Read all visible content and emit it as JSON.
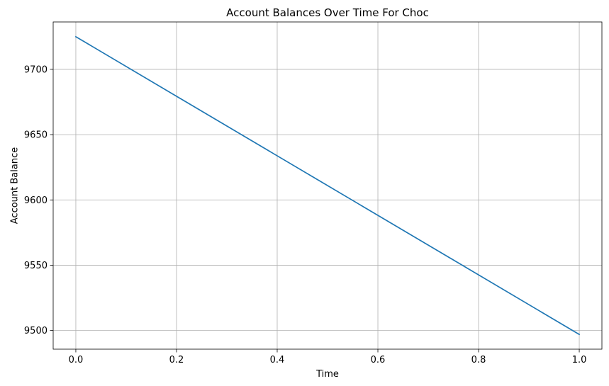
{
  "chart_data": {
    "type": "line",
    "title": "Account Balances Over Time For Choc",
    "xlabel": "Time",
    "ylabel": "Account Balance",
    "xlim": [
      -0.045,
      1.045
    ],
    "ylim": [
      9485.7,
      9736.3
    ],
    "x_ticks": [
      0.0,
      0.2,
      0.4,
      0.6,
      0.8,
      1.0
    ],
    "x_tick_labels": [
      "0.0",
      "0.2",
      "0.4",
      "0.6",
      "0.8",
      "1.0"
    ],
    "y_ticks": [
      9500,
      9550,
      9600,
      9650,
      9700
    ],
    "y_tick_labels": [
      "9500",
      "9550",
      "9600",
      "9650",
      "9700"
    ],
    "grid": true,
    "series": [
      {
        "x": [
          0.0,
          1.0
        ],
        "y": [
          9725,
          9497
        ],
        "color": "#1f77b4"
      }
    ]
  }
}
